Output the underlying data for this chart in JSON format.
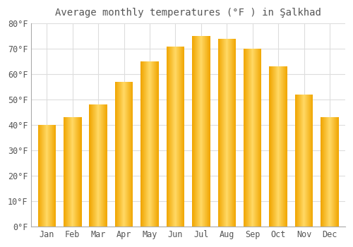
{
  "title": "Average monthly temperatures (°F ) in Şalkhad",
  "months": [
    "Jan",
    "Feb",
    "Mar",
    "Apr",
    "May",
    "Jun",
    "Jul",
    "Aug",
    "Sep",
    "Oct",
    "Nov",
    "Dec"
  ],
  "values": [
    40,
    43,
    48,
    57,
    65,
    71,
    75,
    74,
    70,
    63,
    52,
    43
  ],
  "ylim": [
    0,
    80
  ],
  "yticks": [
    0,
    10,
    20,
    30,
    40,
    50,
    60,
    70,
    80
  ],
  "ytick_labels": [
    "0°F",
    "10°F",
    "20°F",
    "30°F",
    "40°F",
    "50°F",
    "60°F",
    "70°F",
    "80°F"
  ],
  "bar_color_center": "#FFD966",
  "bar_color_edge": "#F0A500",
  "background_color": "#ffffff",
  "title_fontsize": 10,
  "tick_fontsize": 8.5,
  "grid_color": "#dddddd",
  "spine_color": "#aaaaaa",
  "text_color": "#555555"
}
